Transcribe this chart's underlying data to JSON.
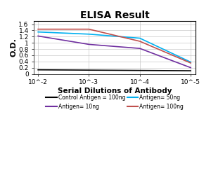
{
  "title": "ELISA Result",
  "ylabel": "O.D.",
  "xlabel": "Serial Dilutions of Antibody",
  "x_values": [
    0.01,
    0.001,
    0.0001,
    1e-05
  ],
  "x_tick_labels": [
    "10^-2",
    "10^-3",
    "10^-4",
    "10^-5"
  ],
  "series": [
    {
      "label": "Control Antigen = 100ng",
      "color": "#000000",
      "linewidth": 1.2,
      "y_values": [
        0.13,
        0.12,
        0.11,
        0.1
      ]
    },
    {
      "label": "Antigen= 10ng",
      "color": "#7030a0",
      "linewidth": 1.2,
      "y_values": [
        1.22,
        0.95,
        0.82,
        0.2
      ]
    },
    {
      "label": "Antigen= 50ng",
      "color": "#00b0f0",
      "linewidth": 1.2,
      "y_values": [
        1.35,
        1.28,
        1.15,
        0.38
      ]
    },
    {
      "label": "Antigen= 100ng",
      "color": "#c0504d",
      "linewidth": 1.2,
      "y_values": [
        1.44,
        1.44,
        1.05,
        0.35
      ]
    }
  ],
  "ylim": [
    0,
    1.7
  ],
  "yticks": [
    0,
    0.2,
    0.4,
    0.6,
    0.8,
    1.0,
    1.2,
    1.4,
    1.6
  ],
  "xlim_left": 0.012,
  "xlim_right": 8e-06,
  "background_color": "#ffffff",
  "grid_color": "#bbbbbb",
  "title_fontsize": 10,
  "label_fontsize": 7.5,
  "tick_fontsize": 6.5,
  "legend_fontsize": 5.5
}
